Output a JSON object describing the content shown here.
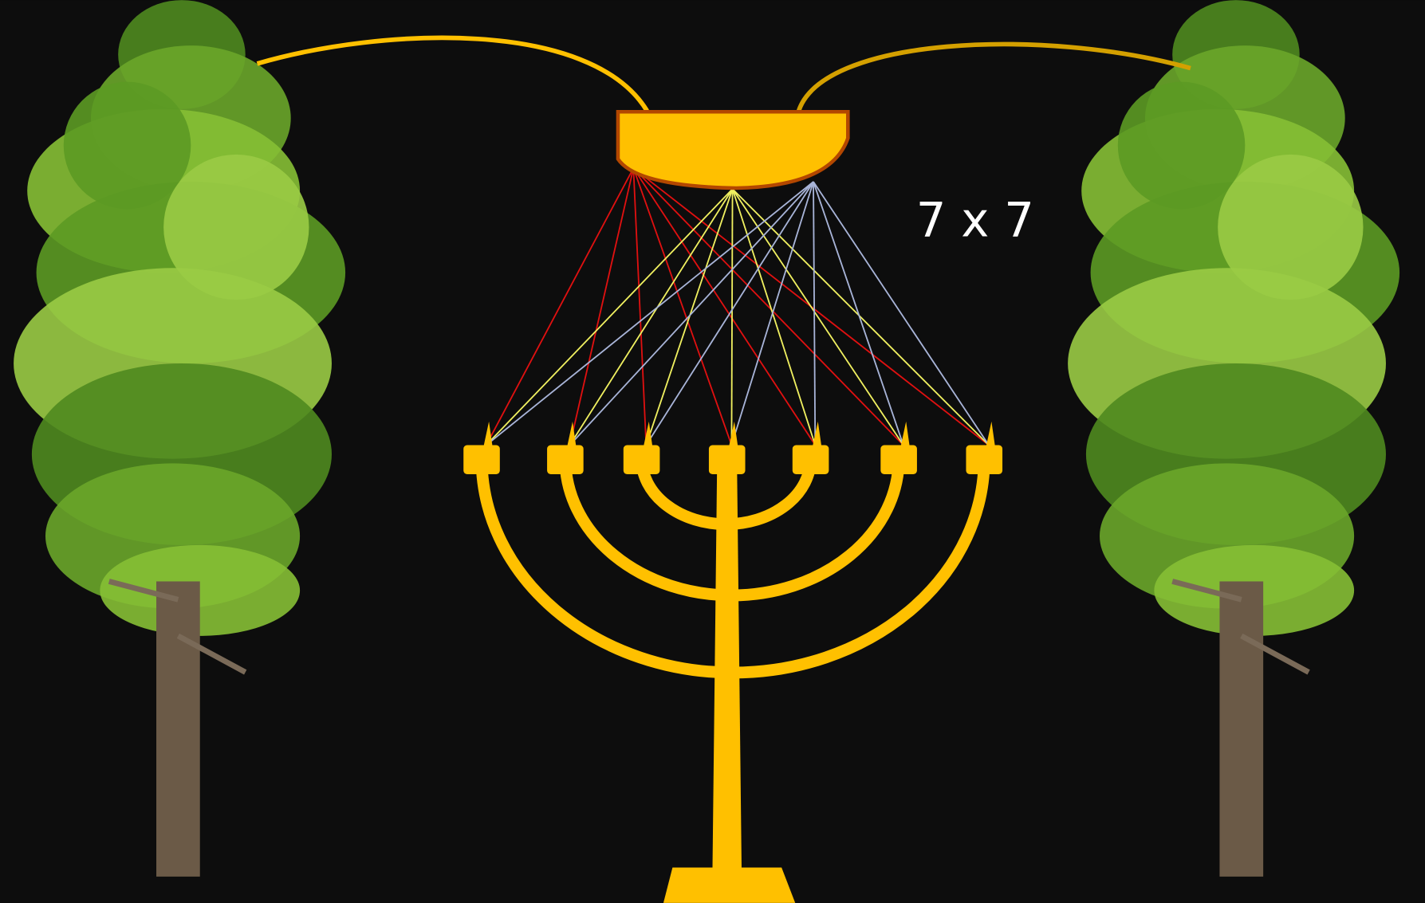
{
  "label": "7 x 7"
}
